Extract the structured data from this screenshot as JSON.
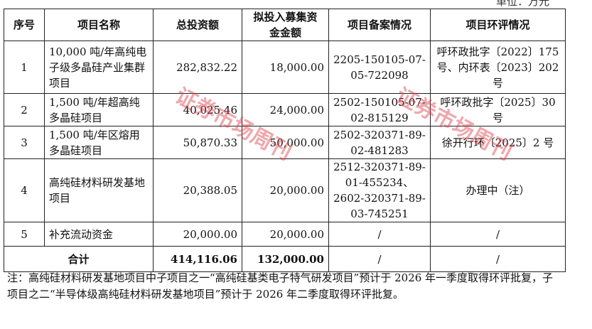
{
  "unit": "单位：万元",
  "headers": [
    "序号",
    "项目名称",
    "总投资额",
    "拟投入募集资金金额",
    "项目备案情况",
    "项目环评情况"
  ],
  "rows": [
    {
      "no": "1",
      "name": "10,000 吨/年高纯电子级多晶硅产业集群项目",
      "total": "282,832.22",
      "raised": "18,000.00",
      "filing": "2205-150105-07-05-722098",
      "eia": "呼环政批字〔2022〕175 号、内环表〔2023〕202 号"
    },
    {
      "no": "2",
      "name": "1,500 吨/年超高纯多晶硅项目",
      "total": "40,025.46",
      "raised": "24,000.00",
      "filing": "2502-150105-07-02-815129",
      "eia": "呼环政批字〔2025〕30 号"
    },
    {
      "no": "3",
      "name": "1,500 吨/年区熔用多晶硅项目",
      "total": "50,870.33",
      "raised": "50,000.00",
      "filing": "2502-320371-89-02-481283",
      "eia": "徐开行环〔2025〕2 号"
    },
    {
      "no": "4",
      "name": "高纯硅材料研发基地项目",
      "total": "20,388.05",
      "raised": "20,000.00",
      "filing": "2512-320371-89-01-455234、2602-320371-89-03-745251",
      "eia": "办理中（注）"
    },
    {
      "no": "5",
      "name": "补充流动资金",
      "total": "20,000.00",
      "raised": "20,000.00",
      "filing": "/",
      "eia": "/"
    }
  ],
  "total": {
    "label": "合计",
    "total": "414,116.06",
    "raised": "132,000.00",
    "filing": "/",
    "eia": "/"
  },
  "note": "注：高纯硅材料研发基地项目中子项目之一“高纯硅基类电子特气研发项目”预计于 2026 年一季度取得环评批复，子项目之二“半导体级高纯硅材料研发基地项目”预计于 2026 年二季度取得环评批复。",
  "watermark": "证券市场周刊",
  "watermark_color": "#dc3c46"
}
